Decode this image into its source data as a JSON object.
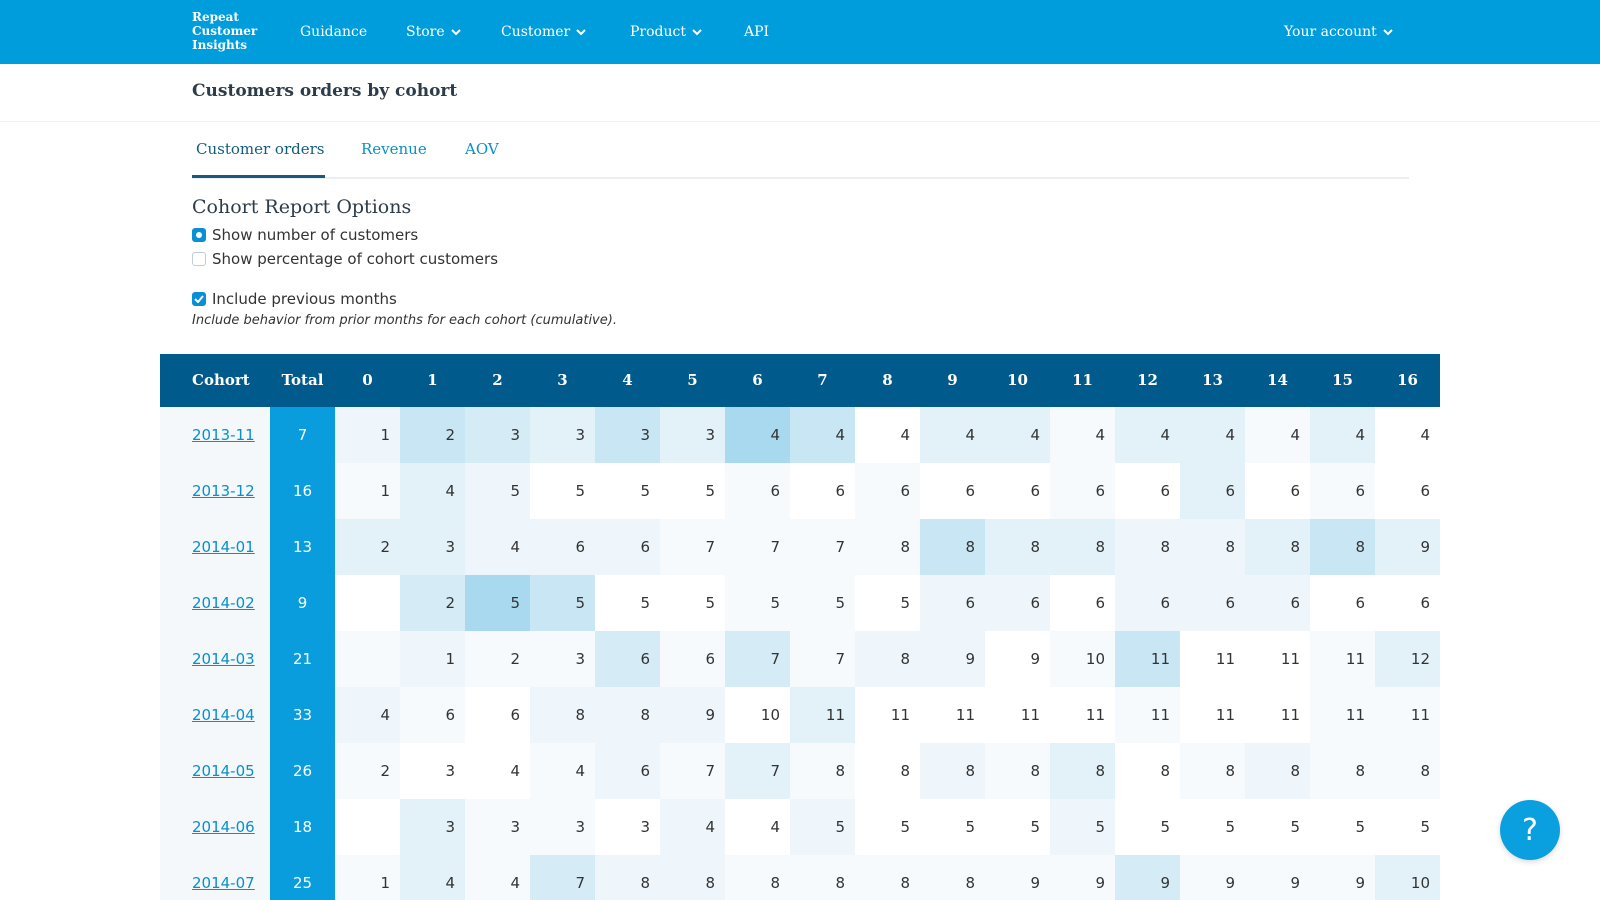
{
  "nav": {
    "logo": "Repeat\nCustomer\nInsights",
    "items": [
      {
        "label": "Guidance",
        "dropdown": false
      },
      {
        "label": "Store",
        "dropdown": true
      },
      {
        "label": "Customer",
        "dropdown": true
      },
      {
        "label": "Product",
        "dropdown": true
      },
      {
        "label": "API",
        "dropdown": false
      }
    ],
    "account": "Your account"
  },
  "page": {
    "title": "Customers orders by cohort"
  },
  "tabs": [
    {
      "label": "Customer orders",
      "active": true
    },
    {
      "label": "Revenue",
      "active": false
    },
    {
      "label": "AOV",
      "active": false
    }
  ],
  "options": {
    "title": "Cohort Report Options",
    "show_number": {
      "label": "Show number of customers",
      "checked": true
    },
    "show_percentage": {
      "label": "Show percentage of cohort customers",
      "checked": false
    },
    "include_previous": {
      "label": "Include previous months",
      "checked": true
    },
    "include_help": "Include behavior from prior months for each cohort (cumulative)."
  },
  "table": {
    "headers": {
      "cohort": "Cohort",
      "total": "Total",
      "months": [
        "0",
        "1",
        "2",
        "3",
        "4",
        "5",
        "6",
        "7",
        "8",
        "9",
        "10",
        "11",
        "12",
        "13",
        "14",
        "15",
        "16"
      ]
    },
    "rows": [
      {
        "cohort": "2013-11",
        "total": "7",
        "values": [
          "1",
          "2",
          "3",
          "3",
          "3",
          "3",
          "4",
          "4",
          "4",
          "4",
          "4",
          "4",
          "4",
          "4",
          "4",
          "4",
          "4"
        ]
      },
      {
        "cohort": "2013-12",
        "total": "16",
        "values": [
          "1",
          "4",
          "5",
          "5",
          "5",
          "5",
          "6",
          "6",
          "6",
          "6",
          "6",
          "6",
          "6",
          "6",
          "6",
          "6",
          "6"
        ]
      },
      {
        "cohort": "2014-01",
        "total": "13",
        "values": [
          "2",
          "3",
          "4",
          "6",
          "6",
          "7",
          "7",
          "7",
          "8",
          "8",
          "8",
          "8",
          "8",
          "8",
          "8",
          "8",
          "9"
        ]
      },
      {
        "cohort": "2014-02",
        "total": "9",
        "values": [
          "",
          "2",
          "5",
          "5",
          "5",
          "5",
          "5",
          "5",
          "5",
          "6",
          "6",
          "6",
          "6",
          "6",
          "6",
          "6",
          "6"
        ]
      },
      {
        "cohort": "2014-03",
        "total": "21",
        "values": [
          "",
          "1",
          "2",
          "3",
          "6",
          "6",
          "7",
          "7",
          "8",
          "9",
          "9",
          "10",
          "11",
          "11",
          "11",
          "11",
          "12"
        ]
      },
      {
        "cohort": "2014-04",
        "total": "33",
        "values": [
          "4",
          "6",
          "6",
          "8",
          "8",
          "9",
          "10",
          "11",
          "11",
          "11",
          "11",
          "11",
          "11",
          "11",
          "11",
          "11",
          "11"
        ]
      },
      {
        "cohort": "2014-05",
        "total": "26",
        "values": [
          "2",
          "3",
          "4",
          "4",
          "6",
          "7",
          "7",
          "8",
          "8",
          "8",
          "8",
          "8",
          "8",
          "8",
          "8",
          "8",
          "8"
        ]
      },
      {
        "cohort": "2014-06",
        "total": "18",
        "values": [
          "",
          "3",
          "3",
          "3",
          "3",
          "4",
          "4",
          "5",
          "5",
          "5",
          "5",
          "5",
          "5",
          "5",
          "5",
          "5",
          "5"
        ]
      },
      {
        "cohort": "2014-07",
        "total": "25",
        "values": [
          "1",
          "4",
          "4",
          "7",
          "8",
          "8",
          "8",
          "8",
          "8",
          "8",
          "9",
          "9",
          "9",
          "9",
          "9",
          "9",
          "10"
        ]
      }
    ],
    "shades": [
      [
        "#eef6fb",
        "#c8e6f4",
        "#d5ecf7",
        "#e3f2f9",
        "#c8e6f4",
        "#e3f2f9",
        "#a9d9ef",
        "#c8e6f4",
        "#ffffff",
        "#e3f2f9",
        "#e3f2f9",
        "#f6fafd",
        "#e3f2f9",
        "#e3f2f9",
        "#f6fafd",
        "#e3f2f9",
        "#ffffff"
      ],
      [
        "#f6fafd",
        "#e3f2f9",
        "#eef6fb",
        "#ffffff",
        "#ffffff",
        "#ffffff",
        "#f6fafd",
        "#ffffff",
        "#f6fafd",
        "#ffffff",
        "#ffffff",
        "#f6fafd",
        "#ffffff",
        "#e3f2f9",
        "#ffffff",
        "#f6fafd",
        "#ffffff"
      ],
      [
        "#e3f2f9",
        "#e3f2f9",
        "#eef6fb",
        "#eef6fb",
        "#eef6fb",
        "#f6fafd",
        "#f6fafd",
        "#f6fafd",
        "#f6fafd",
        "#c8e6f4",
        "#e3f2f9",
        "#e3f2f9",
        "#eef6fb",
        "#eef6fb",
        "#e3f2f9",
        "#c8e6f4",
        "#e3f2f9"
      ],
      [
        "#ffffff",
        "#d5ecf7",
        "#a9d9ef",
        "#c8e6f4",
        "#ffffff",
        "#ffffff",
        "#f6fafd",
        "#f6fafd",
        "#ffffff",
        "#eef6fb",
        "#eef6fb",
        "#ffffff",
        "#eef6fb",
        "#eef6fb",
        "#eef6fb",
        "#ffffff",
        "#ffffff"
      ],
      [
        "#f6fafd",
        "#eef6fb",
        "#f6fafd",
        "#f6fafd",
        "#d5ecf7",
        "#f6fafd",
        "#d5ecf7",
        "#f6fafd",
        "#eef6fb",
        "#eef6fb",
        "#ffffff",
        "#f6fafd",
        "#c8e6f4",
        "#ffffff",
        "#ffffff",
        "#f6fafd",
        "#e3f2f9"
      ],
      [
        "#eef6fb",
        "#f6fafd",
        "#ffffff",
        "#eef6fb",
        "#eef6fb",
        "#eef6fb",
        "#ffffff",
        "#e3f2f9",
        "#ffffff",
        "#ffffff",
        "#ffffff",
        "#ffffff",
        "#f6fafd",
        "#ffffff",
        "#ffffff",
        "#f6fafd",
        "#f6fafd"
      ],
      [
        "#f6fafd",
        "#ffffff",
        "#ffffff",
        "#f6fafd",
        "#eef6fb",
        "#f6fafd",
        "#e3f2f9",
        "#f6fafd",
        "#ffffff",
        "#eef6fb",
        "#f6fafd",
        "#e3f2f9",
        "#ffffff",
        "#f6fafd",
        "#eef6fb",
        "#f6fafd",
        "#f6fafd"
      ],
      [
        "#ffffff",
        "#e3f2f9",
        "#f6fafd",
        "#f6fafd",
        "#ffffff",
        "#eef6fb",
        "#ffffff",
        "#eef6fb",
        "#ffffff",
        "#ffffff",
        "#ffffff",
        "#eef6fb",
        "#ffffff",
        "#ffffff",
        "#ffffff",
        "#ffffff",
        "#ffffff"
      ],
      [
        "#f6fafd",
        "#e3f2f9",
        "#f6fafd",
        "#d5ecf7",
        "#eef6fb",
        "#eef6fb",
        "#f6fafd",
        "#f6fafd",
        "#f6fafd",
        "#f6fafd",
        "#f6fafd",
        "#f6fafd",
        "#d5ecf7",
        "#f6fafd",
        "#f6fafd",
        "#f6fafd",
        "#e3f2f9"
      ]
    ]
  },
  "help_button": {
    "label": "?"
  },
  "colors": {
    "nav_bg": "#009ddc",
    "table_header_bg": "#005a8c",
    "total_col_bg": "#0a9ddd",
    "link": "#0a8fc8",
    "tab_active": "#135c7e"
  }
}
